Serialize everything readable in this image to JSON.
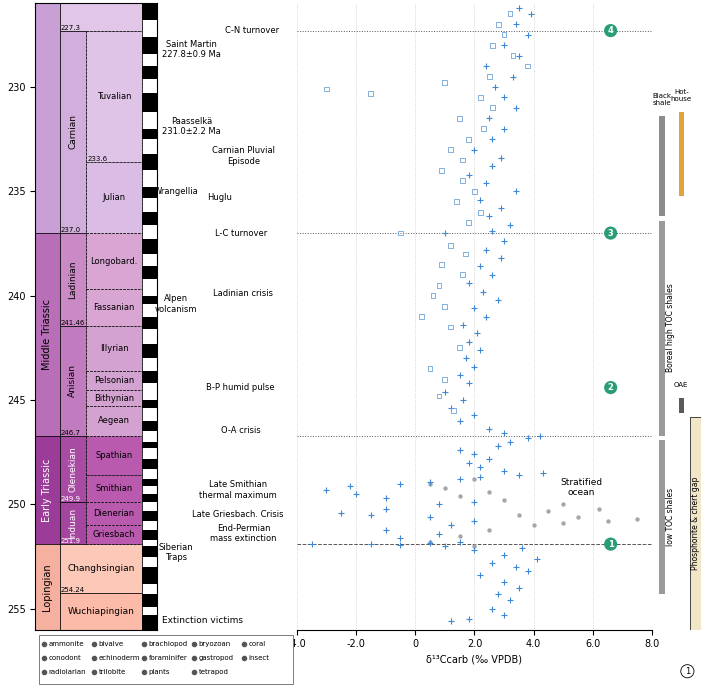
{
  "chart_data": {
    "type": "scatter",
    "xlabel": "δ¹³Ccarb (‰ VPDB)",
    "xlim": [
      -4,
      8
    ],
    "xticks": [
      {
        "value": -4,
        "label": "-4.0"
      },
      {
        "value": -2,
        "label": "-2.0"
      },
      0,
      {
        "value": 2,
        "label": "2.0"
      },
      {
        "value": 4,
        "label": "4.0"
      },
      {
        "value": 6,
        "label": "6.0"
      },
      {
        "value": 8,
        "label": "8.0"
      }
    ],
    "ylim": [
      256,
      226
    ],
    "yticks": [
      230,
      235,
      240,
      245,
      250,
      255
    ],
    "grid": true,
    "series": [
      {
        "color": "#3f88d8",
        "marker": "plus",
        "y": [
          255.6,
          255.5,
          255.3,
          255.0,
          254.6,
          254.3,
          254.0,
          253.7,
          253.4,
          253.2,
          253.0,
          252.8,
          252.6,
          252.4,
          252.2,
          252.1,
          252.0,
          251.95,
          251.9,
          251.9,
          251.85,
          251.8,
          251.6,
          251.4,
          251.2,
          251.0,
          250.8,
          250.6,
          250.5,
          250.4,
          250.2,
          250.0,
          249.9,
          249.7,
          249.5,
          249.3,
          249.1,
          249.0,
          248.9,
          248.8,
          248.7,
          248.6,
          248.5,
          248.4,
          248.2,
          248.0,
          247.8,
          247.6,
          247.4,
          247.2,
          247.0,
          246.8,
          246.7,
          246.6,
          246.4,
          246.0,
          245.7,
          245.4,
          245.0,
          244.6,
          244.2,
          243.8,
          243.4,
          243.0,
          242.6,
          242.2,
          241.8,
          241.4,
          241.0,
          240.6,
          240.2,
          239.8,
          239.4,
          239.0,
          238.6,
          238.2,
          237.8,
          237.4,
          237.0,
          236.9,
          236.6,
          236.2,
          235.8,
          235.4,
          235.0,
          234.6,
          234.2,
          233.8,
          233.4,
          233.0,
          232.5,
          232.0,
          231.5,
          231.0,
          230.5,
          230.0,
          229.5,
          229.0,
          228.5,
          228.0,
          227.5,
          227.0,
          226.5,
          226.2
        ],
        "x": [
          1.2,
          1.8,
          3.0,
          2.6,
          3.2,
          2.8,
          3.5,
          3.0,
          2.2,
          3.8,
          3.4,
          2.6,
          4.1,
          3.0,
          2.0,
          3.6,
          1.0,
          -0.5,
          -1.5,
          -3.5,
          0.5,
          1.5,
          -0.5,
          0.8,
          -1.0,
          1.2,
          2.0,
          0.5,
          -1.5,
          -2.5,
          -1.0,
          0.8,
          2.0,
          -1.0,
          -2.0,
          -3.0,
          -2.2,
          -0.5,
          0.5,
          1.5,
          2.2,
          3.5,
          4.3,
          3.0,
          2.2,
          1.8,
          2.5,
          2.0,
          1.5,
          2.8,
          3.2,
          3.8,
          4.2,
          3.0,
          2.5,
          1.5,
          2.0,
          1.2,
          1.6,
          1.0,
          1.8,
          1.5,
          2.0,
          1.7,
          2.2,
          1.8,
          2.1,
          1.6,
          2.4,
          2.0,
          2.8,
          2.3,
          1.8,
          2.6,
          2.2,
          2.9,
          2.4,
          3.0,
          1.0,
          2.6,
          3.2,
          2.5,
          2.9,
          2.2,
          3.4,
          2.4,
          1.8,
          2.6,
          2.9,
          2.0,
          2.6,
          3.0,
          2.5,
          3.4,
          3.0,
          2.7,
          3.3,
          2.4,
          3.5,
          3.0,
          3.8,
          3.4,
          3.9,
          3.5
        ]
      },
      {
        "color": "#6fa3dc",
        "marker": "open_square",
        "y": [
          245.5,
          244.8,
          244.0,
          243.5,
          242.5,
          241.5,
          241.0,
          240.5,
          240.0,
          239.5,
          239.0,
          238.5,
          238.0,
          237.6,
          237.0,
          236.5,
          236.0,
          235.5,
          235.0,
          234.5,
          234.0,
          233.5,
          233.0,
          232.5,
          232.0,
          231.5,
          231.0,
          230.5,
          230.3,
          230.1,
          229.8,
          229.5,
          229.0,
          228.5,
          228.0,
          227.5,
          227.0,
          226.5
        ],
        "x": [
          1.3,
          0.8,
          1.0,
          0.5,
          1.5,
          1.2,
          0.2,
          1.0,
          0.6,
          0.8,
          1.6,
          0.9,
          1.7,
          1.2,
          -0.5,
          1.8,
          2.2,
          1.4,
          2.0,
          1.6,
          0.9,
          1.6,
          1.2,
          1.8,
          2.3,
          1.5,
          2.6,
          2.2,
          -1.5,
          -3.0,
          1.0,
          2.5,
          3.8,
          3.3,
          2.6,
          3.0,
          2.8,
          3.2
        ]
      },
      {
        "color": "#a6a6a6",
        "marker": "circle",
        "y": [
          252.0,
          251.8,
          251.5,
          251.2,
          251.0,
          250.9,
          250.8,
          250.7,
          250.6,
          250.5,
          250.3,
          250.2,
          250.0,
          249.8,
          249.6,
          249.4,
          249.2,
          249.0,
          248.8
        ],
        "x": [
          2.0,
          0.5,
          1.5,
          2.5,
          4.0,
          5.0,
          6.5,
          7.5,
          5.5,
          3.5,
          4.5,
          6.2,
          5.0,
          3.0,
          1.5,
          2.5,
          1.0,
          0.5,
          2.0
        ]
      }
    ],
    "boundary_lines": [
      {
        "age": 227.3,
        "line_style": "dotted"
      },
      {
        "age": 237.0,
        "line_style": "dotted"
      },
      {
        "age": 246.7,
        "line_style": "dotted"
      },
      {
        "age": 251.9,
        "line_style": "dashed"
      }
    ],
    "phase_markers": [
      {
        "label": "1",
        "age": 251.9,
        "x": 6.6
      },
      {
        "label": "2",
        "age": 244.4,
        "x": 6.6
      },
      {
        "label": "3",
        "age": 237.0,
        "x": 6.6
      },
      {
        "label": "4",
        "age": 227.3,
        "x": 6.6
      }
    ],
    "annotations": [
      {
        "label": "Stratified\nocean",
        "age": 249.2,
        "x": 5.6
      }
    ],
    "events": [
      {
        "label": "C-N turnover",
        "age": 227.3
      },
      {
        "label": "Saint Martin\n227.8±0.9 Ma",
        "age": 228.2
      },
      {
        "label": "Paasselkä\n231.0±2.2 Ma",
        "age": 231.9
      },
      {
        "label": "Carnian Pluvial\nEpisode",
        "age": 233.3
      },
      {
        "label": "Wrangellia",
        "age": 235.0
      },
      {
        "label": "Huglu",
        "age": 235.3
      },
      {
        "label": "L-C turnover",
        "age": 237.0
      },
      {
        "label": "Ladinian crisis",
        "age": 239.9
      },
      {
        "label": "Alpen\nvolcanism",
        "age": 240.4
      },
      {
        "label": "B-P humid pulse",
        "age": 244.4
      },
      {
        "label": "O-A crisis",
        "age": 246.45
      },
      {
        "label": "Late Smithian\nthermal maximum",
        "age": 249.3
      },
      {
        "label": "Late Griesbach. Crisis",
        "age": 250.5
      },
      {
        "label": "End-Permian\nmass extinction",
        "age": 251.4
      },
      {
        "label": "Siberian\nTraps",
        "age": 252.3
      }
    ],
    "timescale": {
      "series": [
        {
          "name": null,
          "top": 226,
          "bottom": 237.0,
          "color": "#c9a0d6"
        },
        {
          "name": "Middle Triassic",
          "top": 237.0,
          "bottom": 246.7,
          "color": "#b86fb8"
        },
        {
          "name": "Early Triassic",
          "top": 246.7,
          "bottom": 251.9,
          "color": "#9b3d98"
        },
        {
          "name": "Lopingian",
          "top": 251.9,
          "bottom": 256,
          "color": "#f6b0a0"
        }
      ],
      "stages": [
        {
          "name": null,
          "top": 226,
          "bottom": 227.3,
          "color": "#e2c6e8"
        },
        {
          "name": "Carnian",
          "top": 227.3,
          "bottom": 237.0,
          "color": "#d2aedc"
        },
        {
          "name": "Ladinian",
          "top": 237.0,
          "bottom": 241.46,
          "color": "#c98ac5"
        },
        {
          "name": "Anisian",
          "top": 241.46,
          "bottom": 246.7,
          "color": "#c07cbe"
        },
        {
          "name": "Olenekian",
          "top": 246.7,
          "bottom": 249.9,
          "color": "#a84ca3"
        },
        {
          "name": "Induan",
          "top": 249.9,
          "bottom": 251.9,
          "color": "#a4469f"
        },
        {
          "name": "Changhsingian",
          "top": 251.9,
          "bottom": 254.24,
          "color": "#fcc8b8"
        },
        {
          "name": "Wuchiapingian",
          "top": 254.24,
          "bottom": 256,
          "color": "#fcbaa8"
        }
      ],
      "substages": [
        {
          "name": "Tuvalian",
          "top": 227.3,
          "bottom": 233.6,
          "color": "#e0c4e8"
        },
        {
          "name": "Julian",
          "top": 233.6,
          "bottom": 237.0,
          "color": "#dbbce4"
        },
        {
          "name": "Longobard.",
          "top": 237.0,
          "bottom": 239.7,
          "color": "#d9a6d3"
        },
        {
          "name": "Fassanian",
          "top": 239.7,
          "bottom": 241.46,
          "color": "#d9a6d3"
        },
        {
          "name": "Illyrian",
          "top": 241.46,
          "bottom": 243.6,
          "color": "#d4a2d0"
        },
        {
          "name": "Pelsonian",
          "top": 243.6,
          "bottom": 244.5,
          "color": "#d4a2d0"
        },
        {
          "name": "Bithynian",
          "top": 244.5,
          "bottom": 245.3,
          "color": "#d4a2d0"
        },
        {
          "name": "Aegean",
          "top": 245.3,
          "bottom": 246.7,
          "color": "#d4a2d0"
        },
        {
          "name": "Spathian",
          "top": 246.7,
          "bottom": 248.6,
          "color": "#b95aae"
        },
        {
          "name": "Smithian",
          "top": 248.6,
          "bottom": 249.9,
          "color": "#b95aae"
        },
        {
          "name": "Dienerian",
          "top": 249.9,
          "bottom": 251.0,
          "color": "#b95aae"
        },
        {
          "name": "Griesbach",
          "top": 251.0,
          "bottom": 251.9,
          "color": "#b95aae"
        }
      ],
      "boundary_labels": [
        227.3,
        233.6,
        237.0,
        241.46,
        246.7,
        249.9,
        251.9,
        254.24
      ],
      "polarity_normal": [
        [
          226.0,
          226.8
        ],
        [
          227.6,
          228.4
        ],
        [
          229.0,
          229.6
        ],
        [
          230.3,
          231.2
        ],
        [
          232.0,
          232.5
        ],
        [
          233.2,
          234.0
        ],
        [
          234.8,
          235.3
        ],
        [
          236.0,
          236.6
        ],
        [
          237.3,
          238.0
        ],
        [
          238.6,
          239.2
        ],
        [
          240.0,
          240.4
        ],
        [
          241.0,
          241.6
        ],
        [
          242.3,
          243.0
        ],
        [
          243.6,
          244.2
        ],
        [
          245.0,
          245.4
        ],
        [
          246.0,
          246.5
        ],
        [
          247.0,
          247.3
        ],
        [
          247.8,
          248.3
        ],
        [
          248.8,
          249.1
        ],
        [
          249.5,
          249.9
        ],
        [
          250.3,
          250.8
        ],
        [
          251.2,
          251.7
        ],
        [
          252.0,
          252.5
        ],
        [
          253.0,
          253.8
        ],
        [
          254.3,
          254.9
        ],
        [
          255.3,
          256.0
        ]
      ]
    },
    "side_bars": [
      {
        "label": "Black\nshale",
        "top": 231.4,
        "bottom": 236.2,
        "color": "#8c8c8c"
      },
      {
        "label": "Hot-\nhouse",
        "top": 231.2,
        "bottom": 235.2,
        "color": "#e3a33b"
      },
      {
        "label": "Boreal high TOC shales",
        "top": 236.4,
        "bottom": 246.7,
        "color": "#9a9a9a"
      },
      {
        "label": "OAE",
        "top": 244.9,
        "bottom": 245.6,
        "color": "#5a5a5a"
      },
      {
        "label": "low TOC shales",
        "top": 246.9,
        "bottom": 254.3,
        "color": "#9a9a9a"
      },
      {
        "label": "Phosphorite & chert gap",
        "top": 245.8,
        "bottom": 256,
        "color": "#f2e6c8"
      }
    ],
    "victims_legend": {
      "title": "Extinction victims",
      "items": [
        "ammonite",
        "bivalve",
        "brachiopod",
        "bryozoan",
        "coral",
        "conodont",
        "echinoderm",
        "foraminifer",
        "gastropod",
        "insect",
        "radiolarian",
        "trilobite",
        "plants",
        "tetrapod"
      ]
    },
    "page_number": "1"
  }
}
